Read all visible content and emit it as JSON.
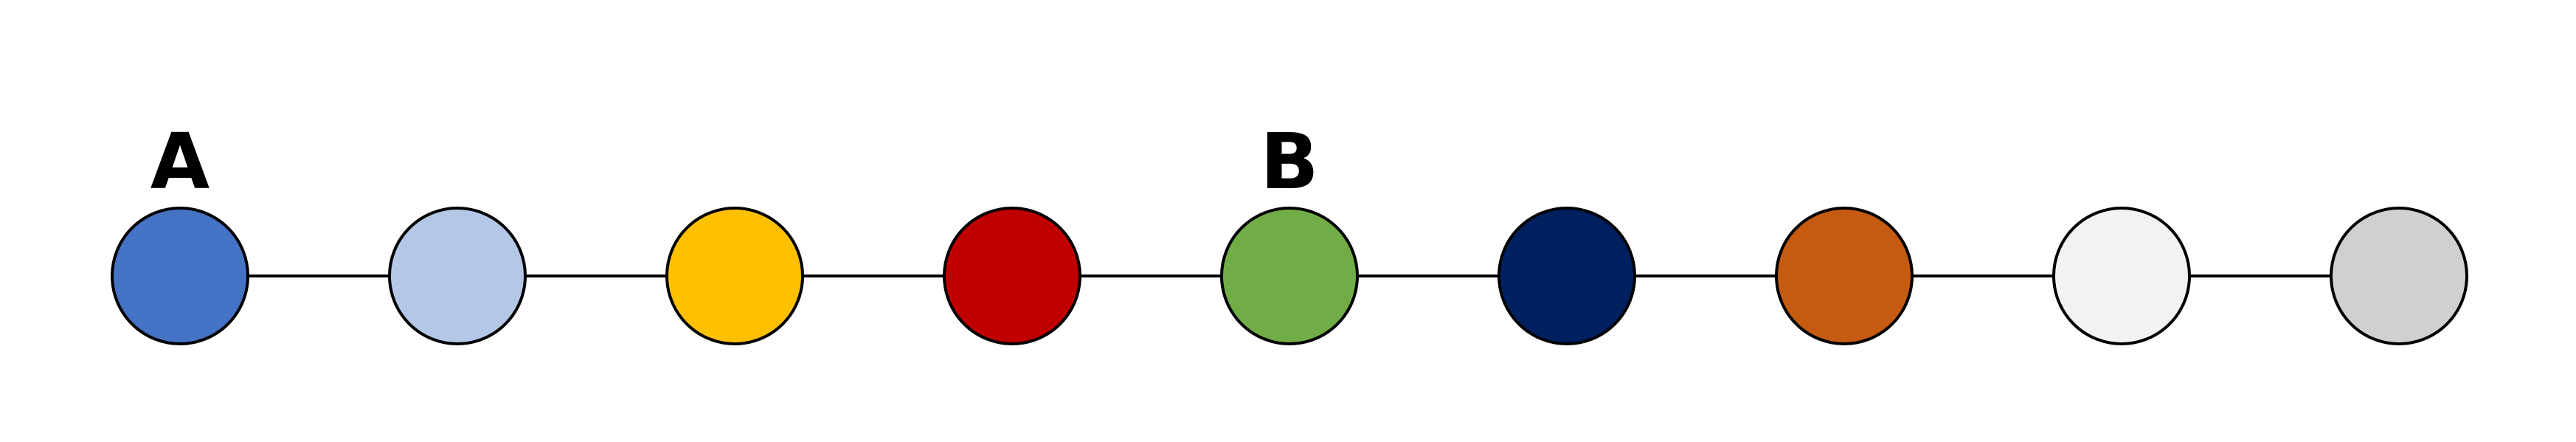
{
  "diagram": {
    "edge_color": "#000000",
    "stroke_color": "#000000",
    "nodes": [
      {
        "color": "#4472C4",
        "label": "A"
      },
      {
        "color": "#B4C7E7",
        "label": ""
      },
      {
        "color": "#FFC000",
        "label": ""
      },
      {
        "color": "#C00000",
        "label": ""
      },
      {
        "color": "#70AD47",
        "label": "B"
      },
      {
        "color": "#002060",
        "label": ""
      },
      {
        "color": "#C55A11",
        "label": ""
      },
      {
        "color": "#F2F2F2",
        "label": ""
      },
      {
        "color": "#D0D0D0",
        "label": ""
      }
    ]
  }
}
